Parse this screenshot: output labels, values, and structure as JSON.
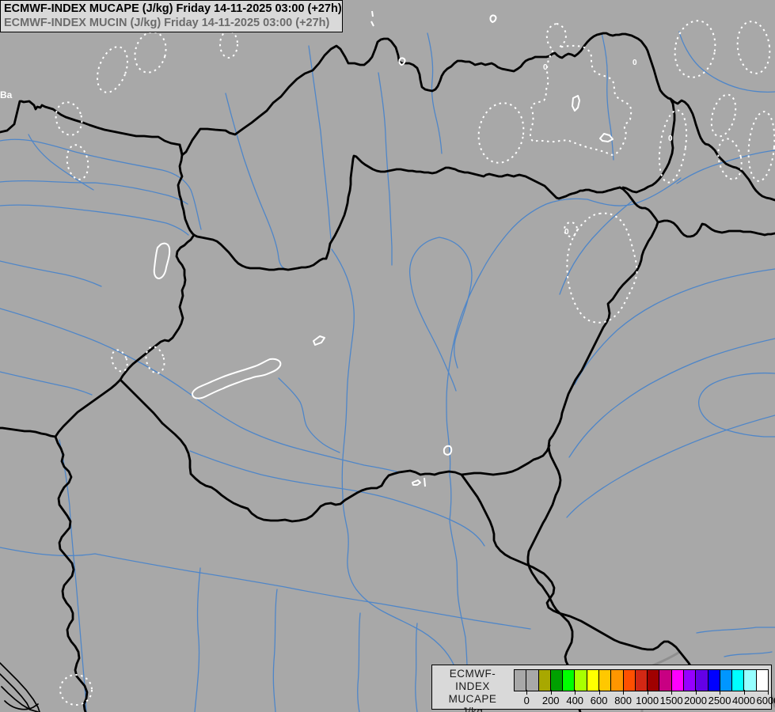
{
  "title_bar": {
    "line1": "ECMWF-INDEX MUCAPE (J/kg) Friday 14-11-2025 03:00 (+27h)",
    "line2": "ECMWF-INDEX MUCIN (J/kg) Friday 14-11-2025 03:00 (+27h)"
  },
  "map": {
    "background_color": "#a8a8a8",
    "country_border_color": "#000000",
    "secondary_border_color": "#8f8f8f",
    "river_color": "#4f86c8",
    "contour_color": "#ffffff",
    "region_label": "Ba",
    "contour_labels": [
      "0",
      "0",
      "0",
      "0"
    ]
  },
  "legend": {
    "panel_color": "#d9d9d9",
    "title_lines": [
      "ECMWF-INDEX",
      "MUCAPE",
      "J/kg"
    ],
    "tick_labels": [
      "0",
      "200",
      "400",
      "600",
      "800",
      "1000",
      "1500",
      "2000",
      "2500",
      "4000",
      "6000"
    ],
    "colors": [
      "#a8a8a8",
      "#a8a8a8",
      "#a8a800",
      "#00a000",
      "#00ff00",
      "#a8ff00",
      "#ffff00",
      "#ffc800",
      "#ff9600",
      "#ff5000",
      "#d22814",
      "#a00000",
      "#c80082",
      "#ff00ff",
      "#9600ff",
      "#6400e6",
      "#0000ff",
      "#0096ff",
      "#00ffff",
      "#96ffff",
      "#ffffff"
    ]
  }
}
